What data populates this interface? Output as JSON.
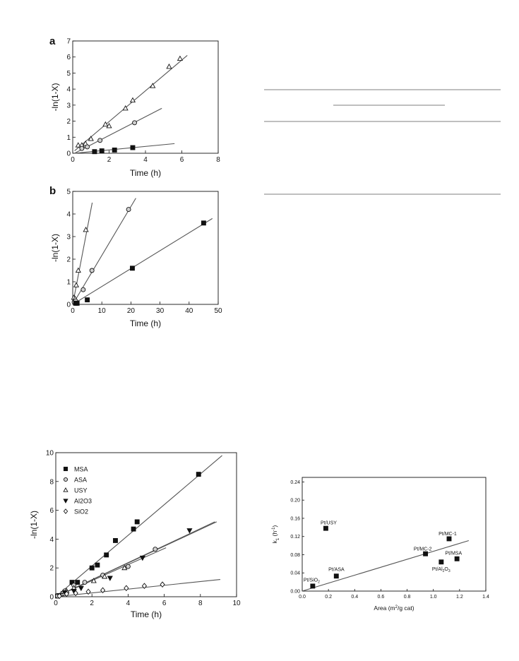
{
  "colors": {
    "ink": "#111111",
    "line": "#555555",
    "hollow_fill": "#ffffff",
    "gray_fill": "#cfcfcf"
  },
  "chart_data": [
    {
      "id": "a",
      "panel_label": "a",
      "type": "scatter",
      "xlabel": "Time (h)",
      "ylabel": "-ln(1-X)",
      "xlim": [
        0,
        8
      ],
      "ylim": [
        0,
        7
      ],
      "xticks": [
        0,
        2,
        4,
        6,
        8
      ],
      "yticks": [
        0,
        1,
        2,
        3,
        4,
        5,
        6,
        7
      ],
      "grid": false,
      "series": [
        {
          "marker": "triangle",
          "fill": "#ffffff",
          "x": [
            0.3,
            0.5,
            0.7,
            1.0,
            1.8,
            2.0,
            2.9,
            3.3,
            4.4,
            5.3,
            5.9
          ],
          "y": [
            0.5,
            0.5,
            0.6,
            0.9,
            1.8,
            1.7,
            2.8,
            3.3,
            4.2,
            5.4,
            5.9
          ],
          "fit": [
            [
              0.1,
              0.15
            ],
            [
              6.3,
              6.1
            ]
          ]
        },
        {
          "marker": "circle",
          "fill": "#cfcfcf",
          "x": [
            0.5,
            0.8,
            1.5,
            3.4
          ],
          "y": [
            0.3,
            0.4,
            0.8,
            1.9
          ],
          "fit": [
            [
              0.1,
              0.0
            ],
            [
              4.9,
              2.8
            ]
          ]
        },
        {
          "marker": "square",
          "fill": "#111111",
          "x": [
            1.2,
            1.6,
            2.3,
            3.3
          ],
          "y": [
            0.1,
            0.15,
            0.2,
            0.35
          ],
          "fit": [
            [
              0.1,
              0.0
            ],
            [
              5.6,
              0.6
            ]
          ]
        }
      ]
    },
    {
      "id": "b",
      "panel_label": "b",
      "type": "scatter",
      "xlabel": "Time (h)",
      "ylabel": "-ln(1-X)",
      "xlim": [
        0,
        50
      ],
      "ylim": [
        0,
        5
      ],
      "xticks": [
        0,
        10,
        20,
        30,
        40,
        50
      ],
      "yticks": [
        0,
        1,
        2,
        3,
        4,
        5
      ],
      "grid": false,
      "series": [
        {
          "marker": "triangle",
          "fill": "#ffffff",
          "x": [
            0.4,
            0.8,
            1.2,
            1.9,
            4.5
          ],
          "y": [
            0.3,
            0.25,
            0.85,
            1.5,
            3.3
          ],
          "fit": [
            [
              0.0,
              0.0
            ],
            [
              6.7,
              4.5
            ]
          ]
        },
        {
          "marker": "circle",
          "fill": "#cfcfcf",
          "x": [
            0.5,
            1.0,
            3.6,
            6.6,
            19.2
          ],
          "y": [
            0.1,
            0.15,
            0.65,
            1.5,
            4.2
          ],
          "fit": [
            [
              0.0,
              0.0
            ],
            [
              21.7,
              4.7
            ]
          ]
        },
        {
          "marker": "square",
          "fill": "#111111",
          "x": [
            1.0,
            1.5,
            5.0,
            20.5,
            45.0
          ],
          "y": [
            0.05,
            0.05,
            0.2,
            1.6,
            3.6
          ],
          "fit": [
            [
              0.0,
              0.0
            ],
            [
              48.0,
              3.8
            ]
          ]
        }
      ]
    },
    {
      "id": "c",
      "type": "scatter",
      "xlabel": "Time (h)",
      "ylabel": "-ln(1-X)",
      "xlim": [
        0,
        10
      ],
      "ylim": [
        0,
        10
      ],
      "xticks": [
        0,
        2,
        4,
        6,
        8,
        10
      ],
      "yticks": [
        0,
        2,
        4,
        6,
        8,
        10
      ],
      "grid": false,
      "legend_position": "top-left",
      "series": [
        {
          "name": "MSA",
          "marker": "square",
          "fill": "#111111",
          "x": [
            0.1,
            0.9,
            1.2,
            2.0,
            2.3,
            2.8,
            3.3,
            4.3,
            4.5,
            7.9
          ],
          "y": [
            0.05,
            1.0,
            1.0,
            2.0,
            2.2,
            2.9,
            3.9,
            4.7,
            5.2,
            8.5
          ],
          "fit": [
            [
              0.0,
              0.0
            ],
            [
              9.2,
              9.8
            ]
          ]
        },
        {
          "name": "ASA",
          "marker": "circle",
          "fill": "#cfcfcf",
          "x": [
            0.1,
            0.5,
            1.0,
            1.6,
            2.6,
            4.0,
            5.5
          ],
          "y": [
            0.05,
            0.4,
            0.8,
            1.0,
            1.5,
            2.1,
            3.3
          ],
          "fit": [
            [
              0.0,
              0.0
            ],
            [
              8.8,
              5.2
            ]
          ]
        },
        {
          "name": "USY",
          "marker": "triangle",
          "fill": "#ffffff",
          "x": [
            0.3,
            0.6,
            1.0,
            2.1,
            2.7,
            3.8
          ],
          "y": [
            0.2,
            0.4,
            0.6,
            1.1,
            1.4,
            2.0
          ],
          "fit": [
            [
              0.0,
              0.0
            ],
            [
              6.1,
              3.4
            ]
          ]
        },
        {
          "name": "Al2O3",
          "marker": "triangle-down",
          "fill": "#111111",
          "x": [
            0.2,
            0.5,
            1.0,
            1.4,
            3.0,
            4.8,
            7.4
          ],
          "y": [
            0.1,
            0.3,
            0.4,
            0.6,
            1.3,
            2.7,
            4.6
          ],
          "fit": [
            [
              0.0,
              0.0
            ],
            [
              8.9,
              5.2
            ]
          ]
        },
        {
          "name": "SiO2",
          "marker": "diamond",
          "fill": "#ffffff",
          "x": [
            0.2,
            0.6,
            1.1,
            1.8,
            2.6,
            3.9,
            4.9,
            5.9
          ],
          "y": [
            0.05,
            0.2,
            0.25,
            0.35,
            0.45,
            0.6,
            0.75,
            0.85
          ],
          "fit": [
            [
              0.0,
              0.0
            ],
            [
              9.1,
              1.2
            ]
          ]
        }
      ]
    },
    {
      "id": "d",
      "type": "scatter",
      "xlabel": "Area (m2/g cat)",
      "ylabel": "k1 (h-1)",
      "xlim": [
        0,
        1.4
      ],
      "ylim": [
        0,
        0.25
      ],
      "xticks": [
        0.0,
        0.2,
        0.4,
        0.6,
        0.8,
        1.0,
        1.2,
        1.4
      ],
      "xtick_labels": [
        "0.0",
        "0.2",
        "0.4",
        "0.6",
        "0.8",
        "1.0",
        "1.2",
        "1.4"
      ],
      "yticks": [
        0.0,
        0.04,
        0.08,
        0.12,
        0.16,
        0.2,
        0.24
      ],
      "ytick_labels": [
        "0.00",
        "0.04",
        "0.08",
        "0.12",
        "0.16",
        "0.20",
        "0.24"
      ],
      "grid": false,
      "series": [
        {
          "marker": "square",
          "fill": "#111111",
          "x": [
            0.08,
            0.26,
            0.18,
            0.94,
            1.06,
            1.12,
            1.18
          ],
          "y": [
            0.011,
            0.033,
            0.138,
            0.082,
            0.064,
            0.115,
            0.071
          ],
          "fit": [
            [
              0.0,
              0.0
            ],
            [
              1.27,
              0.111
            ]
          ]
        }
      ],
      "annotations": [
        {
          "text": "Pt/SiO",
          "sub": "2",
          "x": 0.01,
          "y": 0.021
        },
        {
          "text": "Pt/ASA",
          "sub": "",
          "x": 0.2,
          "y": 0.044
        },
        {
          "text": "Pt/USY",
          "sub": "",
          "x": 0.14,
          "y": 0.147
        },
        {
          "text": "Pt/MC-2",
          "sub": "",
          "x": 0.85,
          "y": 0.089
        },
        {
          "text": "Pt/MC-1",
          "sub": "",
          "x": 1.04,
          "y": 0.123
        },
        {
          "text": "Pt/MSA",
          "sub": "",
          "x": 1.09,
          "y": 0.08
        },
        {
          "text": "Pt/Al",
          "sub": "2",
          "after": "O",
          "sub2": "3",
          "x": 0.99,
          "y": 0.045
        }
      ]
    }
  ]
}
